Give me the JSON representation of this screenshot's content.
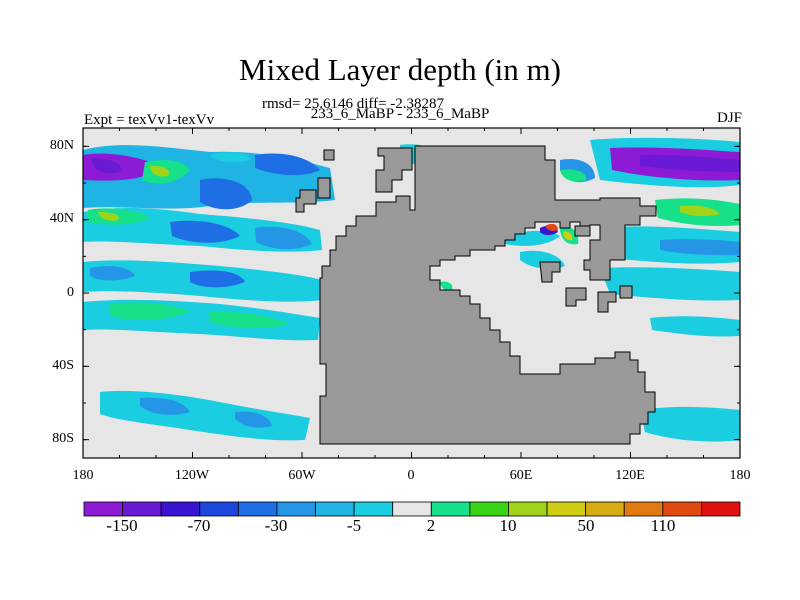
{
  "title": "Mixed Layer depth (in m)",
  "stats": "rmsd= 25.6146 diff= -2.38287",
  "subtitle": "233_6_MaBP - 233_6_MaBP",
  "expt": "Expt = texVv1-texVv",
  "season": "DJF",
  "map": {
    "lon_range": [
      -180,
      180
    ],
    "lat_range": [
      -90,
      90
    ],
    "land_color": "#999999",
    "ocean_near_zero_color": "#e6e6e6",
    "x_ticks": [
      "180",
      "120W",
      "60W",
      "0",
      "60E",
      "120E",
      "180"
    ],
    "y_ticks": [
      "80N",
      "40N",
      "0",
      "40S",
      "80S"
    ]
  },
  "colorbar": {
    "colors": [
      "#8d1bd6",
      "#6a1ad4",
      "#3a14d0",
      "#1c46dc",
      "#1e6ee6",
      "#2596e6",
      "#1fb4e4",
      "#1acde0",
      "#e6e6e6",
      "#16e08a",
      "#3ad417",
      "#a0d418",
      "#cfcc14",
      "#d6ac12",
      "#e07a10",
      "#e04a10",
      "#e01010"
    ],
    "labels": [
      "-150",
      "-70",
      "-30",
      "-5",
      "2",
      "10",
      "50",
      "110"
    ]
  }
}
